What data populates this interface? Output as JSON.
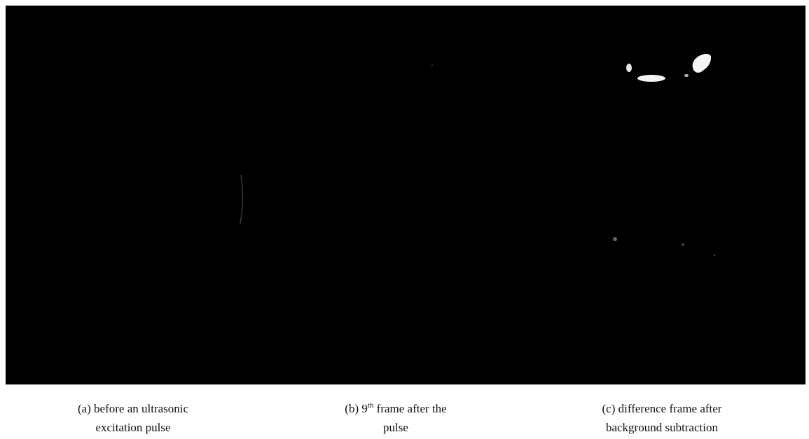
{
  "panels": [
    {
      "caption": {
        "line1": "(a) before an ultrasonic",
        "line2": "excitation pulse"
      }
    },
    {
      "caption": {
        "line1_start": "(b) 9",
        "line1_superscript": "th",
        "line1_end": " frame after the",
        "line2": "pulse"
      }
    },
    {
      "caption": {
        "line1": "(c) difference frame after",
        "line2": "background subtraction"
      }
    }
  ]
}
